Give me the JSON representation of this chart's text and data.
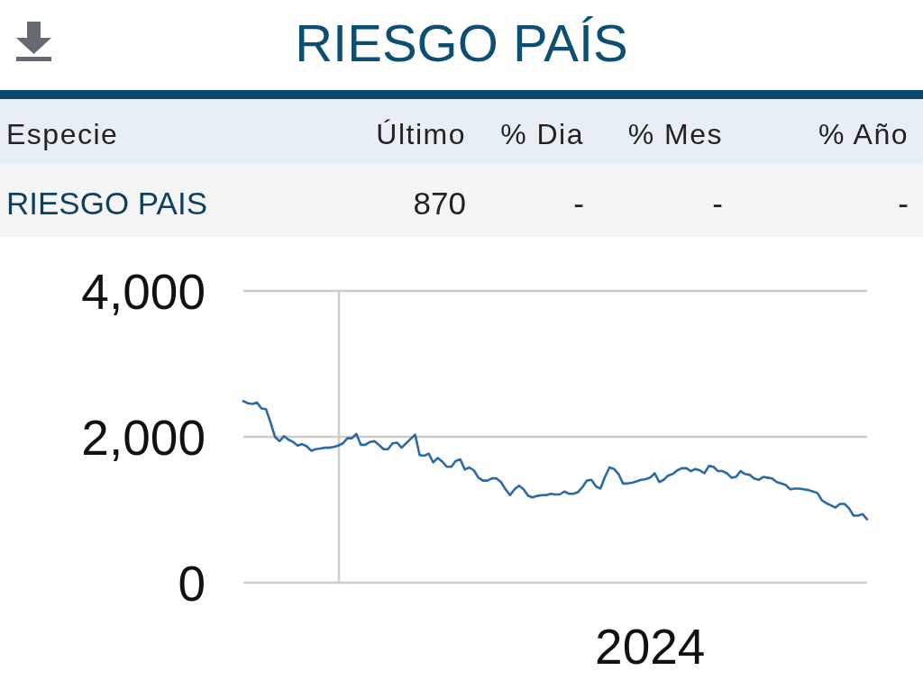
{
  "chart_data": [
    {
      "type": "other",
      "title": "RIESGO PAÍS",
      "annotations": [
        "Especie",
        "Último",
        "% Dia",
        "% Mes",
        "% Año",
        "RIESGO PAIS",
        "870",
        "-",
        "-",
        "-"
      ]
    },
    {
      "type": "line",
      "categories": [
        null,
        null,
        null,
        null,
        null,
        null,
        null,
        null,
        null,
        null,
        null,
        null,
        null,
        null,
        null,
        null,
        null,
        null,
        null,
        null,
        null,
        null,
        null,
        null,
        null,
        null,
        null,
        null,
        null,
        null,
        null,
        null,
        null,
        null,
        null,
        null,
        null,
        null,
        null,
        null,
        null,
        null,
        null,
        null,
        null,
        null,
        null,
        null,
        null,
        null,
        null,
        null,
        null,
        null,
        null,
        null,
        null,
        null,
        null,
        null,
        null,
        null,
        null,
        null,
        null,
        null,
        null,
        null,
        null,
        null,
        null,
        null,
        null,
        null,
        null,
        null,
        null,
        null,
        null,
        null,
        null,
        null,
        null,
        null,
        null,
        null,
        null,
        null,
        null,
        null,
        "2024",
        null,
        null,
        null,
        null,
        null,
        null,
        null,
        null,
        null,
        null,
        null,
        null,
        null,
        null,
        null,
        null,
        null,
        null,
        null,
        null,
        null,
        null,
        null,
        null,
        null,
        null,
        null,
        null,
        null,
        null,
        null,
        null,
        null,
        null,
        null,
        null,
        null,
        null,
        null,
        null,
        null,
        null,
        null,
        null,
        null,
        null,
        null,
        null
      ],
      "series": [
        {
          "color": "#2a6aa8",
          "values": [
            2490,
            2460,
            2450,
            2470,
            2390,
            2380,
            2200,
            2000,
            1940,
            2010,
            1960,
            1930,
            1880,
            1900,
            1870,
            1810,
            1830,
            1840,
            1850,
            1850,
            1860,
            1880,
            1910,
            1980,
            1980,
            2040,
            1890,
            1890,
            1930,
            1940,
            1890,
            1830,
            1830,
            1910,
            1920,
            1850,
            1910,
            1970,
            2030,
            1750,
            1740,
            1770,
            1650,
            1710,
            1660,
            1590,
            1590,
            1670,
            1690,
            1550,
            1580,
            1540,
            1440,
            1400,
            1400,
            1430,
            1430,
            1380,
            1280,
            1200,
            1280,
            1330,
            1280,
            1190,
            1170,
            1190,
            1200,
            1200,
            1220,
            1210,
            1210,
            1250,
            1220,
            1220,
            1240,
            1310,
            1400,
            1410,
            1320,
            1290,
            1450,
            1580,
            1560,
            1490,
            1360,
            1360,
            1370,
            1390,
            1410,
            1420,
            1440,
            1500,
            1380,
            1410,
            1470,
            1490,
            1540,
            1570,
            1570,
            1530,
            1560,
            1540,
            1500,
            1600,
            1590,
            1530,
            1530,
            1500,
            1440,
            1450,
            1530,
            1490,
            1480,
            1430,
            1410,
            1450,
            1440,
            1430,
            1380,
            1360,
            1340,
            1280,
            1290,
            1290,
            1280,
            1270,
            1250,
            1230,
            1130,
            1090,
            1060,
            1030,
            1080,
            1080,
            1020,
            920,
            920,
            940,
            870
          ]
        }
      ],
      "ylim": [
        0,
        4000
      ],
      "yticks": [
        0,
        {
          "value": 2000,
          "label": "2,000"
        },
        {
          "value": 4000,
          "label": "4,000"
        }
      ],
      "grid": "y"
    }
  ]
}
